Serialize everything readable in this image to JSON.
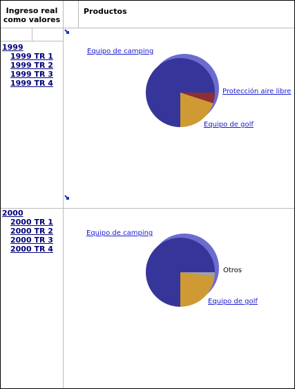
{
  "header": {
    "rows_label": "Ingreso real como valores",
    "columns_label": "Productos"
  },
  "sections": [
    {
      "year": "1999",
      "quarters": [
        "1999 TR 1",
        "1999 TR 2",
        "1999 TR 3",
        "1999 TR 4"
      ],
      "chart": {
        "type": "pie",
        "slices": [
          {
            "label": "Protección aire libre",
            "value": 5,
            "color": "#8e2f33"
          },
          {
            "label": "Equipo de golf",
            "value": 20,
            "color": "#cf9a34"
          },
          {
            "label": "Equipo de camping",
            "value": 75,
            "color": "#36369a"
          }
        ]
      }
    },
    {
      "year": "2000",
      "quarters": [
        "2000 TR 1",
        "2000 TR 2",
        "2000 TR 3",
        "2000 TR 4"
      ],
      "chart": {
        "type": "pie",
        "slices": [
          {
            "label": "Otros",
            "value": 2,
            "color": "#a0a0a8"
          },
          {
            "label": "Equipo de golf",
            "value": 23,
            "color": "#cf9a34"
          },
          {
            "label": "Equipo de camping",
            "value": 75,
            "color": "#36369a"
          }
        ]
      }
    }
  ]
}
